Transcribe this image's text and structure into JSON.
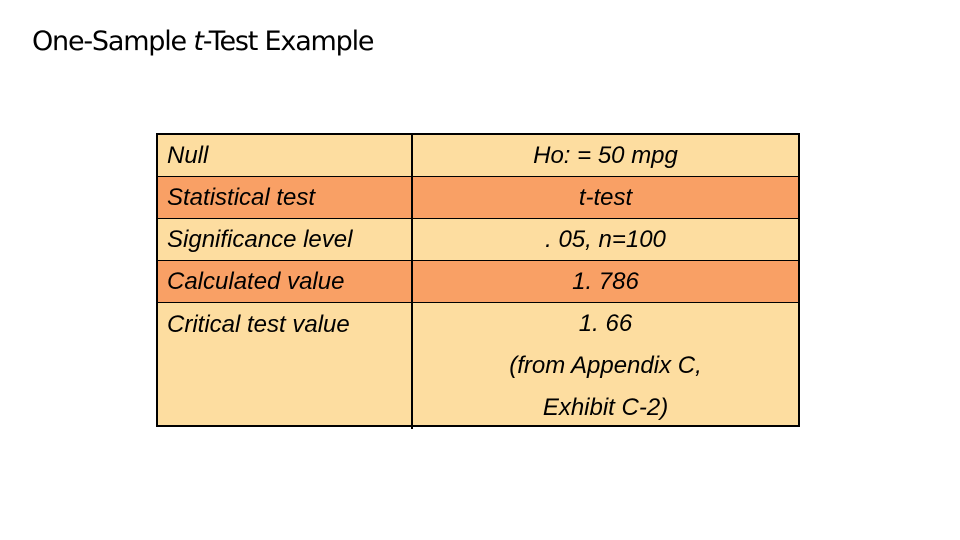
{
  "slide": {
    "title_prefix": "One-Sample ",
    "title_italic": "t",
    "title_suffix": "-Test Example"
  },
  "table": {
    "rows": [
      {
        "label": "Null",
        "value": "Ho: = 50 mpg",
        "shaded": false
      },
      {
        "label": "Statistical test",
        "value": "t-test",
        "shaded": true
      },
      {
        "label": "Significance level",
        "value": ". 05, n=100",
        "shaded": false
      },
      {
        "label": "Calculated value",
        "value": "1. 786",
        "shaded": true
      },
      {
        "label": "Critical test value",
        "value_lines": [
          "1. 66",
          "(from Appendix C,",
          "Exhibit C-2)"
        ],
        "shaded": false
      }
    ]
  },
  "colors": {
    "row_light": "#fddda0",
    "row_shaded": "#f9a065",
    "border": "#000000"
  }
}
